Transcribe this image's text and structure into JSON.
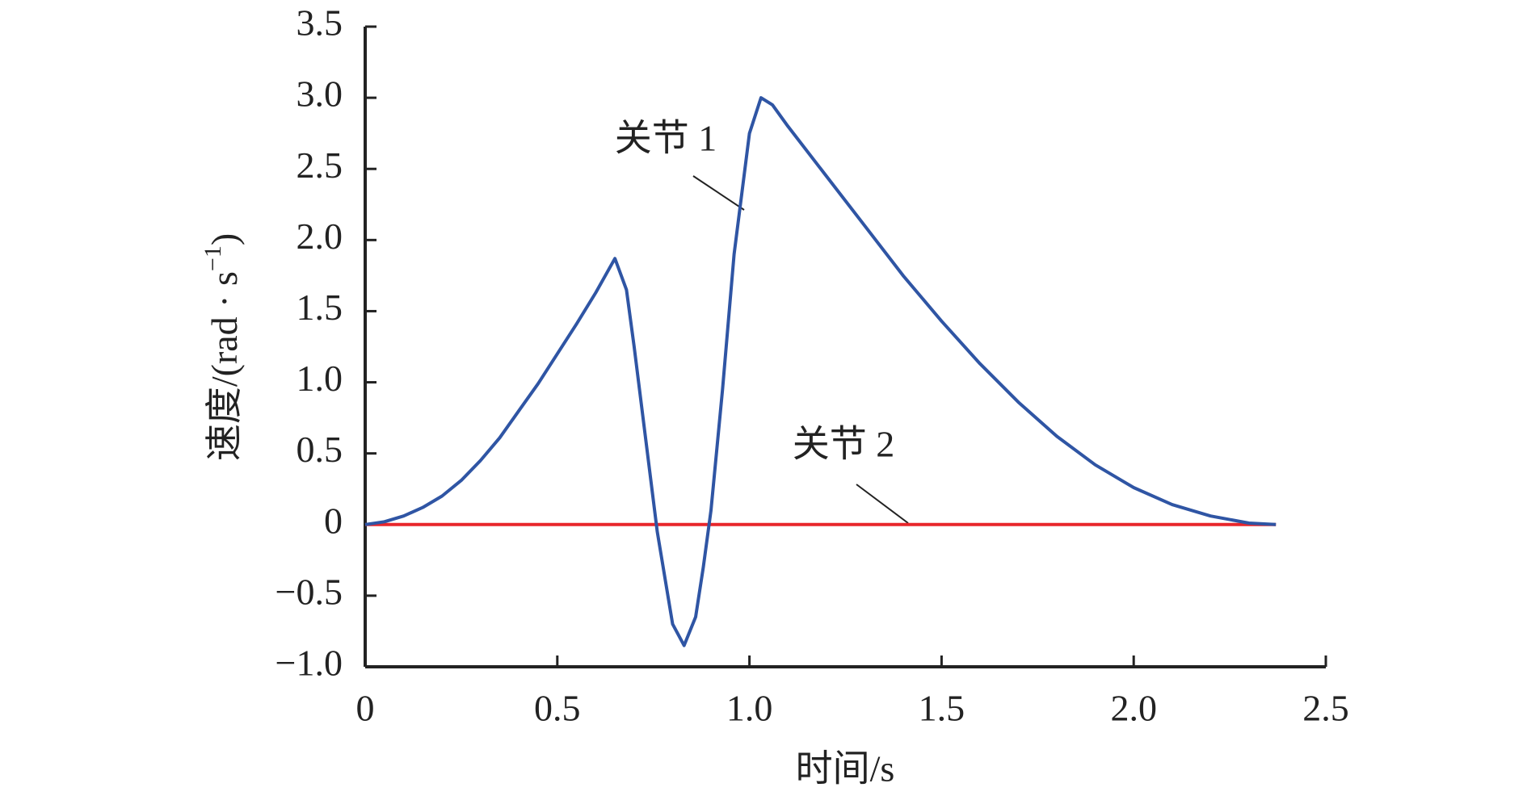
{
  "chart_data": {
    "type": "line",
    "ylabel": {
      "text": "速度/(rad · s",
      "sup": "−1",
      "end": ")"
    },
    "xlabel": "时间/s",
    "annotations": [
      "关节 1",
      "关节 2"
    ],
    "series": [
      {
        "name": "关节 1",
        "color": "#2f55a4",
        "x": [
          0,
          0.05,
          0.1,
          0.15,
          0.2,
          0.25,
          0.3,
          0.35,
          0.4,
          0.45,
          0.5,
          0.55,
          0.6,
          0.65,
          0.68,
          0.7,
          0.73,
          0.76,
          0.8,
          0.83,
          0.86,
          0.88,
          0.9,
          0.93,
          0.96,
          1.0,
          1.03,
          1.06,
          1.1,
          1.2,
          1.3,
          1.4,
          1.5,
          1.6,
          1.7,
          1.8,
          1.9,
          2.0,
          2.1,
          2.2,
          2.3,
          2.37
        ],
        "values": [
          0,
          0.02,
          0.06,
          0.12,
          0.2,
          0.31,
          0.45,
          0.61,
          0.8,
          0.99,
          1.2,
          1.41,
          1.63,
          1.87,
          1.65,
          1.25,
          0.6,
          -0.05,
          -0.7,
          -0.85,
          -0.65,
          -0.3,
          0.1,
          0.95,
          1.9,
          2.75,
          3.0,
          2.95,
          2.8,
          2.45,
          2.1,
          1.75,
          1.43,
          1.13,
          0.86,
          0.62,
          0.42,
          0.26,
          0.14,
          0.06,
          0.01,
          0
        ]
      },
      {
        "name": "关节 2",
        "color": "#e8262b",
        "x": [
          0,
          2.37
        ],
        "values": [
          0,
          0
        ]
      }
    ],
    "xlim": [
      0,
      2.5
    ],
    "xticks": [
      0,
      0.5,
      {
        "value": 1,
        "label": "1.0"
      },
      1.5,
      {
        "value": 2,
        "label": "2.0"
      },
      2.5
    ],
    "ylim": [
      -1,
      3.5
    ],
    "yticks": [
      {
        "value": -1,
        "label": "−1.0"
      },
      {
        "value": -0.5,
        "label": "−0.5"
      },
      0,
      0.5,
      {
        "value": 1,
        "label": "1.0"
      },
      1.5,
      {
        "value": 2,
        "label": "2.0"
      },
      2.5,
      {
        "value": 3,
        "label": "3.0"
      },
      3.5
    ]
  }
}
